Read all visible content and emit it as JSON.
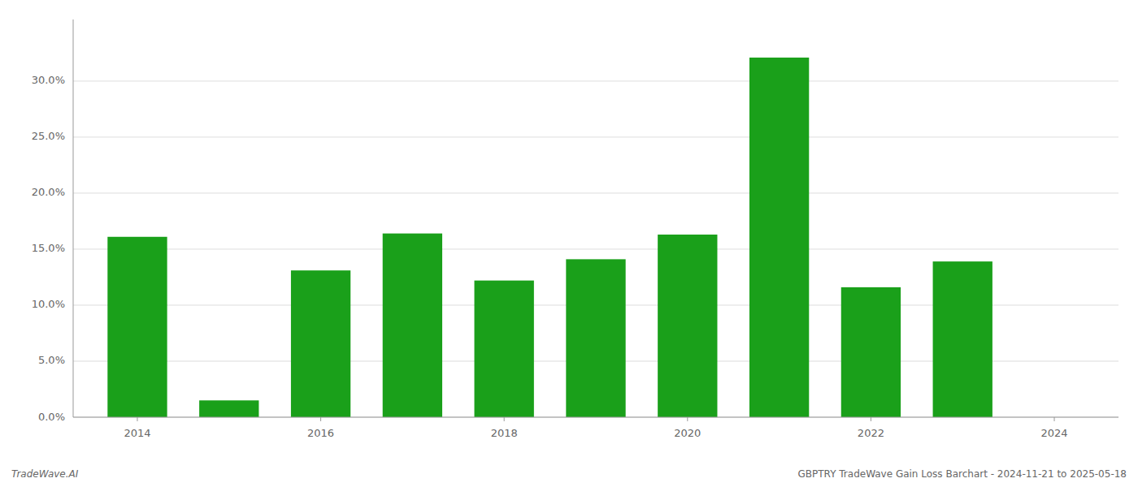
{
  "chart_data": {
    "type": "bar",
    "x": [
      2014,
      2015,
      2016,
      2017,
      2018,
      2019,
      2020,
      2021,
      2022,
      2023
    ],
    "values": [
      0.161,
      0.015,
      0.131,
      0.164,
      0.122,
      0.141,
      0.163,
      0.321,
      0.116,
      0.139
    ],
    "color": "#1aa01a",
    "ylim": [
      0,
      0.355
    ],
    "yticks": [
      {
        "value": 0.0,
        "label": "0.0%"
      },
      {
        "value": 0.05,
        "label": "5.0%"
      },
      {
        "value": 0.1,
        "label": "10.0%"
      },
      {
        "value": 0.15,
        "label": "15.0%"
      },
      {
        "value": 0.2,
        "label": "20.0%"
      },
      {
        "value": 0.25,
        "label": "25.0%"
      },
      {
        "value": 0.3,
        "label": "30.0%"
      }
    ],
    "xlim": [
      2013.3,
      2024.7
    ],
    "xticks": [
      2014,
      2016,
      2018,
      2020,
      2022,
      2024
    ],
    "grid": true,
    "annotations": [
      "TradeWave.AI",
      "GBPTRY TradeWave Gain Loss Barchart - 2024-11-21 to 2025-05-18"
    ]
  }
}
